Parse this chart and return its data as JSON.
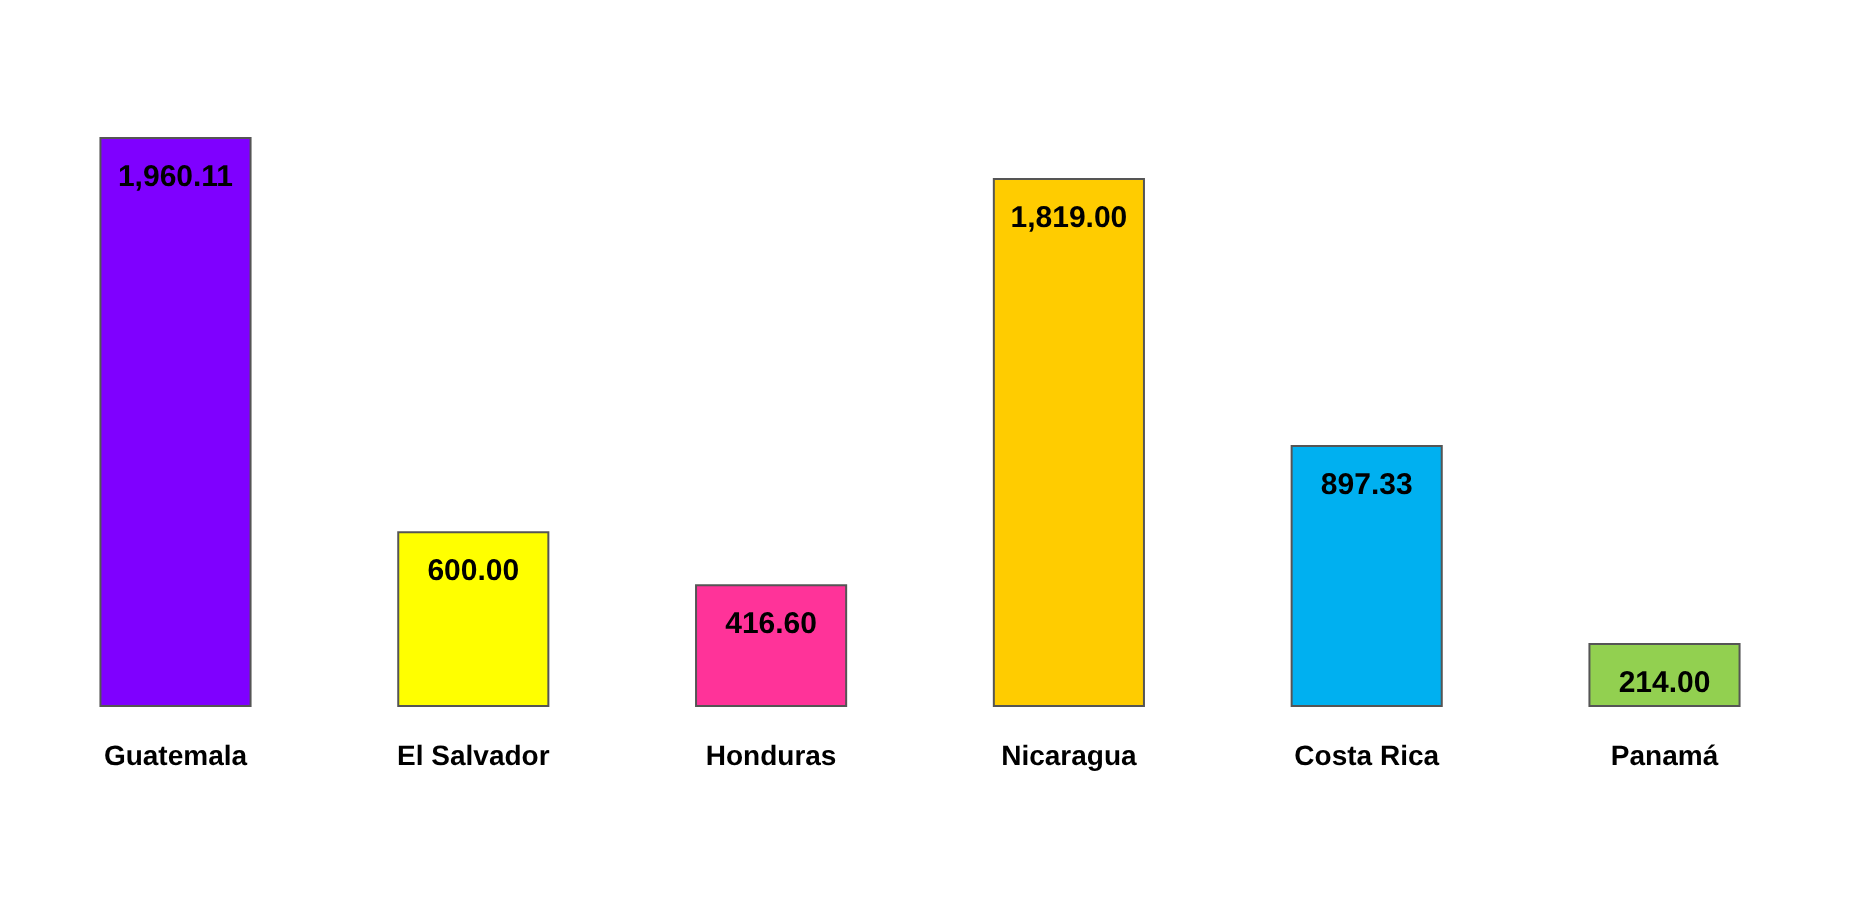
{
  "chart_data": {
    "type": "bar",
    "categories": [
      "Guatemala",
      "El Salvador",
      "Honduras",
      "Nicaragua",
      "Costa Rica",
      "Panamá"
    ],
    "values": [
      1960.11,
      600.0,
      416.6,
      1819.0,
      897.33,
      214.0
    ],
    "colors": [
      "#7f00ff",
      "#ffff00",
      "#ff3399",
      "#ffcc00",
      "#00b0f0",
      "#92d050"
    ],
    "value_labels": [
      "1,960.11",
      "600.00",
      "416.60",
      "1,819.00",
      "897.33",
      "214.00"
    ]
  }
}
